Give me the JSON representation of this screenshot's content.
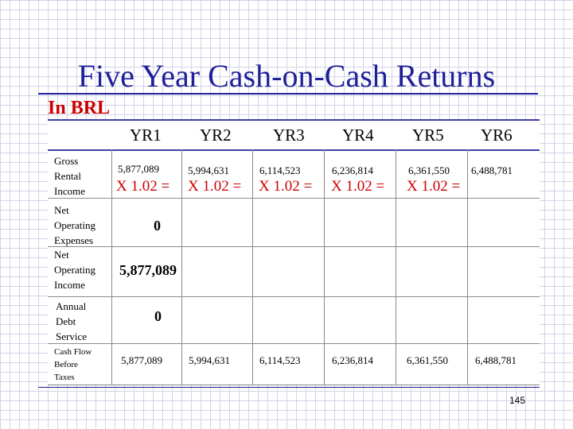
{
  "title": "Five Year Cash-on-Cash Returns",
  "subtitle": "In BRL",
  "headers": [
    "YR1",
    "YR2",
    "YR3",
    "YR4",
    "YR5",
    "YR6"
  ],
  "rows": {
    "gross_rental_income": {
      "label": [
        "Gross",
        "Rental",
        "Income"
      ],
      "values": [
        "5,877,089",
        "5,994,631",
        "6,114,523",
        "6,236,814",
        "6,361,550",
        "6,488,781"
      ],
      "multipliers": [
        "X 1.02 =",
        "X 1.02 =",
        "X 1.02 =",
        "X 1.02 =",
        "X 1.02 ="
      ]
    },
    "net_operating_expenses": {
      "label": [
        "Net",
        "Operating",
        "Expenses"
      ],
      "value": "0"
    },
    "net_operating_income": {
      "label": [
        "Net",
        "Operating",
        "Income"
      ],
      "value": "5,877,089"
    },
    "annual_debt_service": {
      "label": [
        "Annual",
        "Debt",
        "Service"
      ],
      "value": "0"
    },
    "cash_flow_before_taxes": {
      "label": [
        "Cash Flow",
        "Before",
        "Taxes"
      ],
      "values": [
        "5,877,089",
        "5,994,631",
        "6,114,523",
        "6,236,814",
        "6,361,550",
        "6,488,781"
      ]
    }
  },
  "page_number": "145"
}
